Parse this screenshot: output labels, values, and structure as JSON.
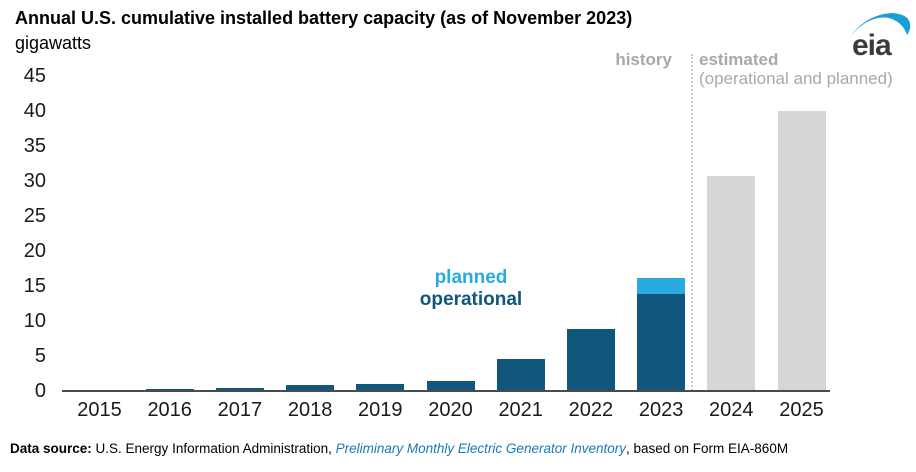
{
  "header": {
    "title": "Annual U.S. cumulative installed battery capacity (as of November 2023)",
    "subtitle": "gigawatts"
  },
  "logo": {
    "text": "eia"
  },
  "legend": {
    "planned": "planned",
    "operational": "operational"
  },
  "annotations": {
    "history": "history",
    "estimated_label": "estimated",
    "estimated_sub": "(operational and planned)"
  },
  "colors": {
    "operational_bar": "#11567d",
    "planned_bar": "#29abe2",
    "estimated_bar": "#d6d6d6",
    "annotation_gray": "#a8a8a8",
    "link_blue": "#1a7ab8",
    "logo_swoosh_blue": "#1b9dd9",
    "axis_text": "#1a1a1a"
  },
  "chart_data": {
    "type": "bar",
    "stacked": true,
    "title": "Annual U.S. cumulative installed battery capacity (as of November 2023)",
    "xlabel": "",
    "ylabel": "gigawatts",
    "categories": [
      "2015",
      "2016",
      "2017",
      "2018",
      "2019",
      "2020",
      "2021",
      "2022",
      "2023",
      "2024",
      "2025"
    ],
    "series": [
      {
        "name": "operational",
        "color": "#11567d",
        "values": [
          0.2,
          0.3,
          0.5,
          0.8,
          1.0,
          1.5,
          4.6,
          8.8,
          13.8,
          null,
          null
        ]
      },
      {
        "name": "planned",
        "color": "#29abe2",
        "values": [
          null,
          null,
          null,
          null,
          null,
          null,
          null,
          null,
          2.4,
          null,
          null
        ]
      },
      {
        "name": "estimated",
        "color": "#d6d6d6",
        "values": [
          null,
          null,
          null,
          null,
          null,
          null,
          null,
          null,
          null,
          30.7,
          40.0
        ]
      }
    ],
    "ylim": [
      0,
      45
    ],
    "yticks": [
      0,
      5,
      10,
      15,
      20,
      25,
      30,
      35,
      40,
      45
    ],
    "grid": false,
    "legend_position": "inside-left-of-2023-bar",
    "separator_between": [
      "2023",
      "2024"
    ],
    "region_labels": {
      "left": "history",
      "right": "estimated (operational and planned)"
    }
  },
  "footer": {
    "label": "Data source:",
    "text1": " U.S. Energy Information Administration, ",
    "link": "Preliminary Monthly Electric Generator Inventory",
    "text2": ", based on Form EIA-860M"
  }
}
